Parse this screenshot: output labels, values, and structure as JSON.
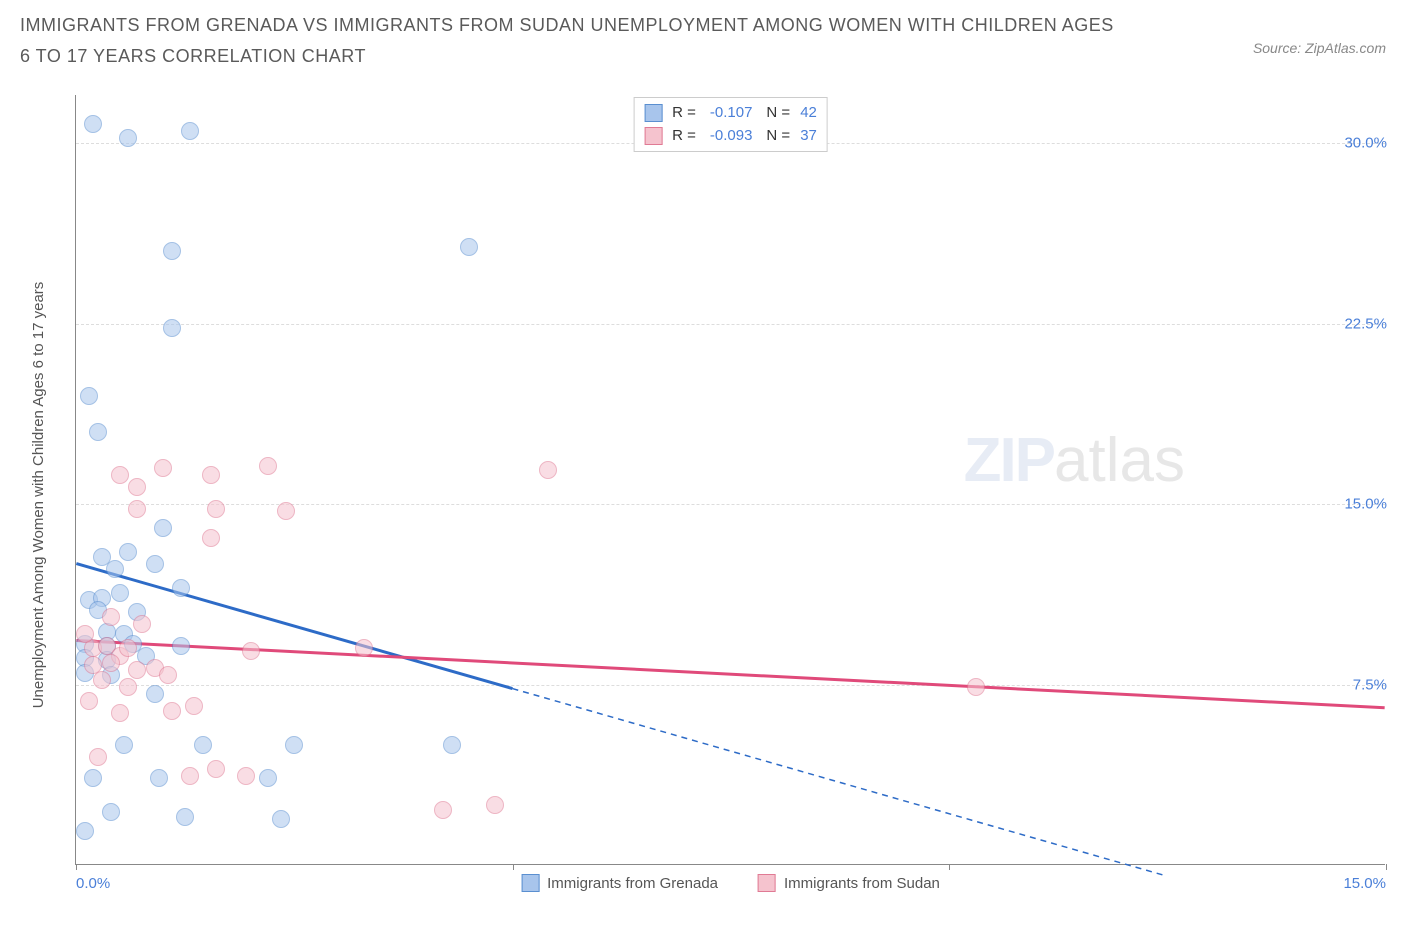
{
  "title": "IMMIGRANTS FROM GRENADA VS IMMIGRANTS FROM SUDAN UNEMPLOYMENT AMONG WOMEN WITH CHILDREN AGES 6 TO 17 YEARS CORRELATION CHART",
  "source": "Source: ZipAtlas.com",
  "y_axis_label": "Unemployment Among Women with Children Ages 6 to 17 years",
  "watermark_prefix": "ZIP",
  "watermark_suffix": "atlas",
  "chart": {
    "type": "scatter",
    "background": "#ffffff",
    "grid_color": "#dddddd",
    "axis_color": "#888888",
    "xlim": [
      0,
      15
    ],
    "ylim": [
      0,
      32
    ],
    "x_ticks": [
      0,
      5,
      10,
      15
    ],
    "x_tick_labels": [
      "0.0%",
      "",
      "",
      "15.0%"
    ],
    "y_ticks": [
      7.5,
      15.0,
      22.5,
      30.0
    ],
    "y_tick_labels": [
      "7.5%",
      "15.0%",
      "22.5%",
      "30.0%"
    ],
    "marker_radius": 9,
    "marker_opacity": 0.55,
    "series": [
      {
        "key": "grenada",
        "label": "Immigrants from Grenada",
        "fill": "#a8c5ec",
        "stroke": "#5a8fd0",
        "line_color": "#2d6bc7",
        "r_value": "-0.107",
        "n_value": "42",
        "trend_solid": {
          "x1": 0.0,
          "y1": 12.5,
          "x2": 5.0,
          "y2": 7.3
        },
        "trend_dash": {
          "x1": 5.0,
          "y1": 7.3,
          "x2": 12.5,
          "y2": -0.5
        },
        "points": [
          [
            0.2,
            30.8
          ],
          [
            0.6,
            30.2
          ],
          [
            1.3,
            30.5
          ],
          [
            1.1,
            25.5
          ],
          [
            1.1,
            22.3
          ],
          [
            0.15,
            19.5
          ],
          [
            0.25,
            18.0
          ],
          [
            0.3,
            12.8
          ],
          [
            0.45,
            12.3
          ],
          [
            0.9,
            12.5
          ],
          [
            0.15,
            11.0
          ],
          [
            0.3,
            11.1
          ],
          [
            0.5,
            11.3
          ],
          [
            1.2,
            11.5
          ],
          [
            0.25,
            10.6
          ],
          [
            0.7,
            10.5
          ],
          [
            0.35,
            9.7
          ],
          [
            0.55,
            9.6
          ],
          [
            0.1,
            9.2
          ],
          [
            0.35,
            9.1
          ],
          [
            0.65,
            9.2
          ],
          [
            0.1,
            8.6
          ],
          [
            0.35,
            8.5
          ],
          [
            0.8,
            8.7
          ],
          [
            0.1,
            8.0
          ],
          [
            0.4,
            7.9
          ],
          [
            4.5,
            25.7
          ],
          [
            0.55,
            5.0
          ],
          [
            1.45,
            5.0
          ],
          [
            2.5,
            5.0
          ],
          [
            4.3,
            5.0
          ],
          [
            0.2,
            3.6
          ],
          [
            0.95,
            3.6
          ],
          [
            0.4,
            2.2
          ],
          [
            1.25,
            2.0
          ],
          [
            2.35,
            1.9
          ],
          [
            0.1,
            1.4
          ],
          [
            2.2,
            3.6
          ],
          [
            1.2,
            9.1
          ],
          [
            0.9,
            7.1
          ],
          [
            0.6,
            13.0
          ],
          [
            1.0,
            14.0
          ]
        ]
      },
      {
        "key": "sudan",
        "label": "Immigrants from Sudan",
        "fill": "#f5c3ce",
        "stroke": "#e07a94",
        "line_color": "#e04a7a",
        "r_value": "-0.093",
        "n_value": "37",
        "trend_solid": {
          "x1": 0.0,
          "y1": 9.3,
          "x2": 15.0,
          "y2": 6.5
        },
        "trend_dash": null,
        "points": [
          [
            0.5,
            16.2
          ],
          [
            0.7,
            15.7
          ],
          [
            1.0,
            16.5
          ],
          [
            1.55,
            16.2
          ],
          [
            2.2,
            16.6
          ],
          [
            0.7,
            14.8
          ],
          [
            1.6,
            14.8
          ],
          [
            2.4,
            14.7
          ],
          [
            5.4,
            16.4
          ],
          [
            1.55,
            13.6
          ],
          [
            3.3,
            9.0
          ],
          [
            0.2,
            9.0
          ],
          [
            0.35,
            9.1
          ],
          [
            0.5,
            8.7
          ],
          [
            0.6,
            9.0
          ],
          [
            0.2,
            8.3
          ],
          [
            0.4,
            8.4
          ],
          [
            0.7,
            8.1
          ],
          [
            0.9,
            8.2
          ],
          [
            0.3,
            7.7
          ],
          [
            0.6,
            7.4
          ],
          [
            0.1,
            9.6
          ],
          [
            0.15,
            6.8
          ],
          [
            0.5,
            6.3
          ],
          [
            1.1,
            6.4
          ],
          [
            1.35,
            6.6
          ],
          [
            0.75,
            10.0
          ],
          [
            1.6,
            4.0
          ],
          [
            1.95,
            3.7
          ],
          [
            4.8,
            2.5
          ],
          [
            4.2,
            2.3
          ],
          [
            0.25,
            4.5
          ],
          [
            10.3,
            7.4
          ],
          [
            1.05,
            7.9
          ],
          [
            2.0,
            8.9
          ],
          [
            0.4,
            10.3
          ],
          [
            1.3,
            3.7
          ]
        ]
      }
    ]
  }
}
